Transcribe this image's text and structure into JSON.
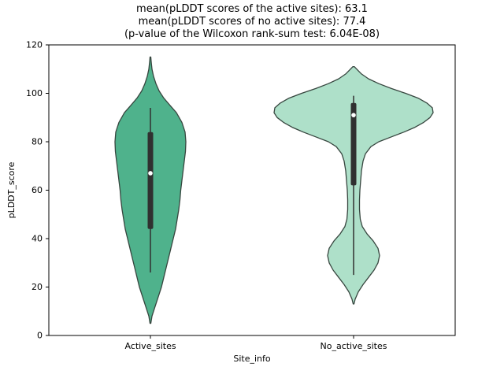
{
  "chart_data": {
    "type": "violin",
    "title_lines": [
      "mean(pLDDT scores of the active sites): 63.1",
      "mean(pLDDT scores of no active sites): 77.4",
      "(p-value of the Wilcoxon rank-sum test: 6.04E-08)"
    ],
    "xlabel": "Site_info",
    "ylabel": "pLDDT_score",
    "ylim": [
      0,
      120
    ],
    "yticks": [
      0,
      20,
      40,
      60,
      80,
      100,
      120
    ],
    "categories": [
      "Active_sites",
      "No_active_sites"
    ],
    "legend": "none",
    "grid": false,
    "stats": {
      "mean_active_sites": 63.1,
      "mean_no_active_sites": 77.4,
      "wilcoxon_p_value": "6.04E-08"
    },
    "series": [
      {
        "name": "Active_sites",
        "fill": "#4fb28c",
        "edge": "#37463f",
        "data_range": [
          5,
          115
        ],
        "box": {
          "whisker_low": 26,
          "q1": 44,
          "median": 67,
          "q3": 84,
          "whisker_high": 94
        },
        "profile": [
          [
            5,
            0.5
          ],
          [
            8,
            2
          ],
          [
            12,
            6
          ],
          [
            16,
            10
          ],
          [
            20,
            14
          ],
          [
            24,
            17
          ],
          [
            28,
            20
          ],
          [
            32,
            23
          ],
          [
            36,
            26
          ],
          [
            40,
            29
          ],
          [
            44,
            32
          ],
          [
            48,
            34
          ],
          [
            52,
            36
          ],
          [
            56,
            37.5
          ],
          [
            60,
            38.5
          ],
          [
            64,
            40
          ],
          [
            68,
            41.5
          ],
          [
            72,
            43
          ],
          [
            76,
            44.5
          ],
          [
            80,
            45
          ],
          [
            84,
            44
          ],
          [
            88,
            40
          ],
          [
            92,
            33
          ],
          [
            95,
            25
          ],
          [
            98,
            17
          ],
          [
            101,
            11
          ],
          [
            104,
            7
          ],
          [
            107,
            4
          ],
          [
            110,
            2
          ],
          [
            113,
            1
          ],
          [
            115,
            0.5
          ]
        ]
      },
      {
        "name": "No_active_sites",
        "fill": "#aee0c9",
        "edge": "#37463f",
        "data_range": [
          13,
          111
        ],
        "box": {
          "whisker_low": 25,
          "q1": 62,
          "median": 91,
          "q3": 96,
          "whisker_high": 99
        },
        "profile": [
          [
            13,
            0.5
          ],
          [
            15,
            2
          ],
          [
            18,
            6
          ],
          [
            21,
            12
          ],
          [
            24,
            19
          ],
          [
            27,
            26
          ],
          [
            30,
            31
          ],
          [
            33,
            33
          ],
          [
            36,
            31
          ],
          [
            39,
            25
          ],
          [
            42,
            17
          ],
          [
            45,
            11
          ],
          [
            48,
            8.5
          ],
          [
            52,
            7.5
          ],
          [
            56,
            7.5
          ],
          [
            60,
            8
          ],
          [
            64,
            9
          ],
          [
            68,
            10
          ],
          [
            72,
            12
          ],
          [
            75,
            15
          ],
          [
            78,
            22
          ],
          [
            80,
            32
          ],
          [
            82,
            48
          ],
          [
            84,
            64
          ],
          [
            86,
            78
          ],
          [
            88,
            89
          ],
          [
            90,
            97
          ],
          [
            92,
            101
          ],
          [
            94,
            100
          ],
          [
            96,
            93
          ],
          [
            98,
            82
          ],
          [
            100,
            66
          ],
          [
            102,
            48
          ],
          [
            104,
            32
          ],
          [
            106,
            19
          ],
          [
            108,
            10
          ],
          [
            110,
            4
          ],
          [
            111,
            1
          ]
        ]
      }
    ],
    "style": {
      "box_color": "#303030",
      "median_dot_color": "#ffffff",
      "frame_color": "#000000"
    }
  }
}
